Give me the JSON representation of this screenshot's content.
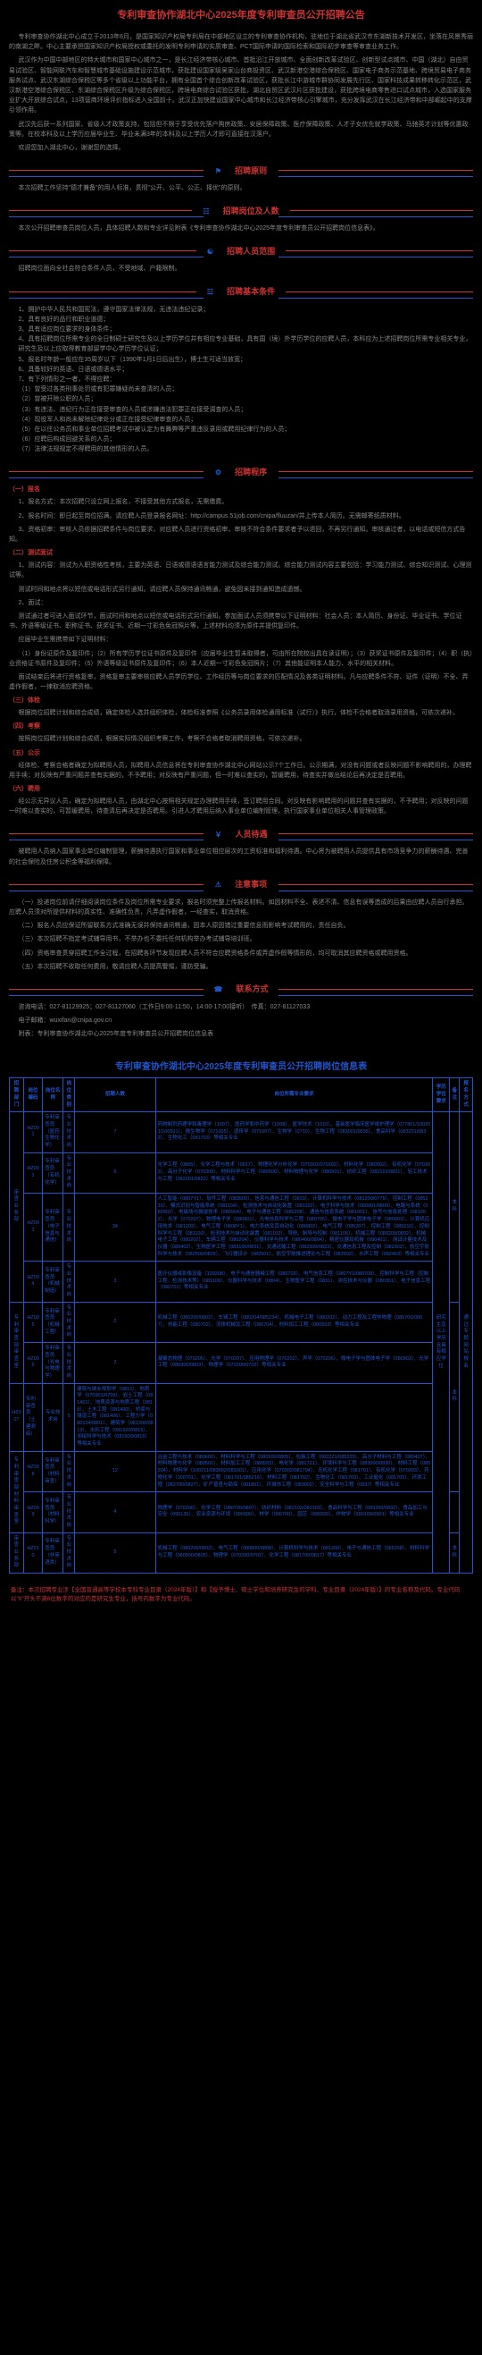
{
  "title": "专利审查协作湖北中心2025年度专利审查员公开招聘公告",
  "intro": [
    "专利审查协作湖北中心成立于2013年6月，是国家知识产权局专利局在中部地区设立的专利审查协作机构，驻地位于湖北省武汉市东湖新技术开发区，坐落在风景秀丽的南湖之畔。中心主要承担国家知识产权局授权或委托的发明专利申请的实质审查、PCT国际申请的国际检索和国际初步审查等审查业务工作。",
    "武汉作为中国中部地区的特大城市和国家中心城市之一，是长江经济带核心城市、首批沿江开放城市、全面创新改革试验区、创新型试点城市、中国（湖北）自由贸易试验区、智能网联汽车和智慧城市基础设施建设示范城市，获批建设国家级吴家山台商投资区、武汉新港空港综合保税区、国家电子商务示范基地、跨境贸易电子商务服务试点、武汉东湖综合保税区等多个省级以上功能平台，拥有全国首个综合创新改革试验区，获批长江中游城市群协同发展先行区、国家科技成果转移转化示范区，武汉新港空港综合保税区、东湖综合保税区升级为综合保税区，跨境电商综合试验区获批，湖北自贸区武汉片区获批建设，获批跨境电商零售进口试点城市，入选国家服务业扩大开放综合试点，13项营商环境评价指标进入全国前十。武汉正加快建设国家中心城市和长江经济带核心引擎城市，充分发挥武汉在长江经济带和中部崛起中的支撑引领作用。",
    "武汉先后获一系列国家、省级人才政策支持，包括但不限于享受优先落户购房政策、安居保障政策、医疗保障政策、人才子女优先就学政策、马驰英才计划等优惠政策等。在校本科及以上学历应届毕业生、毕业未满3年的本科及以上学历人才即可直接在汉落户。",
    "欢迎您加入湖北中心，谢谢您的选择。"
  ],
  "sections": {
    "s1": {
      "title": "招聘原则",
      "body": [
        "本次招聘工作坚持\"德才兼备\"的用人标准，贯彻\"公开、公平、公正、择优\"的原则。"
      ]
    },
    "s2": {
      "title": "招聘岗位及人数",
      "body": [
        "本次公开招聘审查员岗位人员，具体招聘人数和专业详见附表《专利审查协作湖北中心2025年度专利审查员公开招聘岗位信息表》。"
      ]
    },
    "s3": {
      "title": "招聘人员范围",
      "body": [
        "招聘岗位面向全社会符合条件人员，不受地域、户籍限制。"
      ]
    },
    "s4": {
      "title": "招聘基本条件",
      "items": [
        "1、拥护中华人民共和国宪法，遵守国家法律法规，无违法违纪记录；",
        "2、具有良好的品行和职业道德；",
        "3、具有适应岗位要求的身体条件；",
        "4、具有招聘岗位所需专业的全日制硕士研究生及以上学历学位并有相应专业基础，具有国（境）外学历学位的应聘人员，本科应为上述招聘岗位所需专业相关专业，研究生及以上应取得教育部留学中心学历学位认证；",
        "5、报名时年龄一般应在35周岁以下（1990年1月1日后出生），博士生可适当放宽；",
        "6、具备较好的英语、日语或德语水平；",
        "7、有下列情形之一者，不得应聘：",
        "（1）曾受过各类刑事处罚或有犯罪嫌疑尚未查清的人员；",
        "（2）曾被开除公职的人员；",
        "（3）有违法、违纪行为正在接受审查的人员或涉嫌违法犯罪正在接受调查的人员；",
        "（4）现役军人和尚未解除纪律处分或正在接受纪律审查的人员；",
        "（5）在以往公务员和事业单位招聘考试中被认定为有舞弊等严重违反录用或聘用纪律行为的人员；",
        "（6）应聘后构成回避关系的人员；",
        "（7）法律法规规定不得聘用的其他情形的人员。"
      ]
    },
    "s5": {
      "title": "招聘程序",
      "subs": [
        {
          "h": "（一）报名",
          "p": [
            "1、报名方式：本次招聘只设立网上报名，不接受其他方式报名，无需缴费。",
            "2、报名时间：即日起至岗位招满。请应聘人员登录报名网址：http://campus.51job.com/cnipa/fluuzan/并上传本人简历。无需邮寄纸质材料。",
            "3、资格初审：审核人员依据招聘条件与岗位要求，对应聘人员进行资格初审，审核不符合条件要求者予以退回，不再另行通知。审核通过者，以电话或短信方式告知。"
          ]
        },
        {
          "h": "（二）测试面试",
          "p": [
            "1、测试内容：测试为入职资格性考核，主要为英语、日语或德语语言能力测试及综合能力测试。综合能力测试内容主要包括：学习能力测试、综合知识测试、心理测试等。",
            "测试时间和地点将以短信或电话形式另行通知。请应聘人员保持通讯畅通，避免因未接到通知造成遗憾。",
            "2、面试：",
            "测试通过者可进入面试环节，面试时间和地点以短信或电话形式另行通知。参加面试人员须携带以下证明材料：社会人员：本人简历、身份证、毕业证书、学位证书、外语等级证书、职称证书、获奖证书、近期一寸彩色免冠照片等，上述材料均须为原件并提供复印件。",
            "应届毕业生需携带如下证明材料：",
            "（1）身份证原件及复印件；（2）所有学历学位证书原件及复印件（应届毕业生暂未取得者，可由所在院校出具在读证明）；（3）获奖证书原件及复印件；（4）职（执）业资格证书原件及复印件；（5）外语等级证书原件及复印件；（6）本人近期一寸彩色免冠照片；（7）其他能证明本人能力、水平的相关材料。",
            "面试结束后将进行资格复审，资格复审主要审核应聘人员学历学位、工作经历等与岗位要求的匹配情况及各类证明材料。凡与应聘条件不符、证件（证明）不全、弄虚作假者，一律取消应聘资格。"
          ]
        },
        {
          "h": "（三）体检",
          "p": [
            "根据岗位招聘计划和综合成绩，确定体检人选并组织体检，体检标准参照《公务员录用体检通用标准（试行）》执行，体检不合格者取消录用资格，可依次递补。"
          ]
        },
        {
          "h": "（四）考察",
          "p": [
            "按照岗位招聘计划和综合成绩，根据实际情况组织考察工作，考察不合格者取消聘用资格，可依次递补。"
          ]
        },
        {
          "h": "（五）公示",
          "p": [
            "经体检、考察合格者确定为拟聘用人员，拟聘用人员信息将在专利审查协作湖北中心网站公示7个工作日。公示期满，对没有问题或者反映问题不影响聘用的，办理聘用手续；对反映有严重问题并查有实据的，不予聘用；对反映有严重问题，但一时难以查实的，暂缓聘用，待查实并做出结论后再决定是否聘用。"
          ]
        },
        {
          "h": "（六）聘用",
          "p": [
            "经公示无异议人员，确定为拟聘用人员，由湖北中心按照相关规定办理聘用手续，签订聘用合同。对反映有影响聘用的问题并查有实据的，不予聘用；对反映的问题一时难以查实的，可暂缓聘用，待查清后再决定是否聘用。引进人才聘用后纳入事业单位编制管理，执行国家事业单位相关人事管理政策。"
          ]
        }
      ]
    },
    "s6": {
      "title": "人员待遇",
      "body": [
        "被聘用人员纳入国家事业单位编制管理，薪酬待遇执行国家和事业单位相应层次的工资标准和福利待遇。中心将为被聘用人员提供具有市场竞争力的薪酬待遇、完善的社会保险及住房公积金等福利保障。"
      ]
    },
    "s7": {
      "title": "注意事项",
      "items": [
        "（一）投递岗位前请仔细阅读岗位条件及岗位所需专业要求，报名时须完整上传报名材料。如因材料不全、表述不清、信息有误等造成的后果由应聘人员自行承担。应聘人员须对所提供材料的真实性、准确性负责，凡弄虚作假者，一经查实，取消资格。",
        "（二）报名人员应保证所留联系方式准确无误并保持通讯畅通，因本人原因错过重要信息而影响考试聘用的，责任自负。",
        "（三）本次招聘不指定考试辅导用书，不举办也不委托任何机构举办考试辅导培训班。",
        "（四）资格审查贯穿招聘工作全过程，在招聘各环节发现应聘人员不符合应聘资格条件或弄虚作假等情形的，均可取消其应聘资格或聘用资格。",
        "（五）本次招聘不收取任何费用，敬请应聘人员提高警惕，谨防受骗。"
      ]
    },
    "s8": {
      "title": "联系方式",
      "body": [
        "咨询电话：027-81129925；027-81127060（工作日9:00-11:50，14:00-17:00接听）　传真：027-81127033",
        "电子邮箱：wuxifan@cnipa.gov.cn",
        "附表：专利审查协作湖北中心2025年度专利审查员公开招聘岗位信息表"
      ]
    }
  },
  "tableTitle": "专利审查协作湖北中心2025年度专利审查员公开招聘岗位信息表",
  "headers": [
    "招聘部门",
    "岗位编码",
    "岗位名称",
    "岗位类别",
    "招聘人数",
    "岗位所需专业要求",
    "学历学位要求",
    "备注",
    "报名方式"
  ],
  "rows": [
    {
      "dept": "审查业务部",
      "rowspan": 4,
      "code": "HZ001",
      "name": "专利审查员（医药生物化学）",
      "cat": "专业技术岗",
      "num": "7",
      "req": "药物制剂药理学和毒理学（1007）、医药学和中药学（1008）、医学技术（1010）、基础医学临床医学或护理学（077801/100201/100501）、微生物学（071005）、遗传学（071007）、生物学（0710）、生物工程（083001/0836）、食品科学（083201/0832）、生物化工（081703）等相关专业",
      "edu": "研究生及以上学历且具有相应学位",
      "eduRowspan": 8,
      "note": "本科",
      "noteRowspan": 4,
      "apply": "通过专题网站报名",
      "applyRowspan": 8
    },
    {
      "code": "HZ002",
      "name": "专利审查员（有机化学）",
      "cat": "专业技术岗",
      "num": "6",
      "req": "化学工程（0805）、化学工程与技术（0817）、物理化学分析化学（070301/070302）、材料化学（080502）、有机化学（070303）、高分子化学（070305）、材料科学与工程（080500）、材料物理与化学（080501）、纺织工程（082101/0821）、轻工技术与工程（082201/0822）等相关专业"
    },
    {
      "code": "HZ003",
      "name": "专利审查员（电子信息与通信）",
      "cat": "专业技术岗",
      "num": "34",
      "req": "人工智能（0807Y1）、软件工程（083500）、信息与通信工程（0810）、计算机科学与技术（081200/0775）、控制工程（085210）、模式识别与智能系统（081104）、检测技术与自动化装置（081102）、电子科学与技术（080901/0809）、电路与系统（080902）、电磁场与微波技术（080904）、电子与通信工程（085208）、通信与信息系统（081001）、信号与信息处理（081002）、光学（070207）、物理电子学（080901）、光电信息科学与工程（080705）、微电子学与固体电子学（080903）、计算机应用技术（081203）、电气工程（0808Y1）、电力系统及其自动化（080802）、电气工程（085207）、控制工程（085210）、控制科学与工程（081100）、检测技术与自动化装置（081102）、导航、制导与控制（081105）、机械工程（080200/0802）、机械电子工程（080202）、车辆工程（080204）、仪器科学与技术（080400/0804）、精密仪器及机械（080401）、测试计量技术及仪器（080402）、生物医学工程（083100/0831）、交通运输工程（082300/0823）、交通信息工程及控制（082302）、航空宇航科学与技术（082500/0825）、飞行器设计（082501）、航空宇航推进理论与工程（082502）、水声工程（082403）等相关专业"
    },
    {
      "code": "HZ004",
      "name": "专利审查员（机械制造）",
      "cat": "专业技术岗",
      "num": "3",
      "req": "医疗仪器或影像设备（100208）、电子与通信器械工程（080703）、电气信息工程（0807Y1/080708）、控制科学与工程（控制工程、检测技术等）（081100）、仪器科学与技术（0804）、生物医学工程（0831）、测控技术与仪器（080301）、电子信息工程（080701）等相关专业"
    },
    {
      "dept": "专利审查部审查室",
      "rowspan": 2,
      "code": "HZ005",
      "name": "专利审查员（机械工程）",
      "cat": "专业技术岗",
      "num": "2",
      "req": "机械工程（080200/0802）、车辆工程（080204/085234）、机械电子工程（080202）、动力工程及工程热物理（080700/0807）、热能工程（080702）、流体机械及工程（080704）、材料加工工程（080503）等相关专业",
      "note": "本科",
      "noteRowspan": 4
    },
    {
      "code": "HZ006",
      "name": "专利审查员（光电与物理学）",
      "cat": "专业技术岗",
      "num": "2",
      "req": "凝聚态物理（070205）、光学（070207）、应用物理学（070202）、声学（070206）、微电子学与固体电子学（080903）、光学工程（080300/0803）、物理学（070200/0702）等相关专业"
    },
    {
      "code": "HZ007",
      "name": "专利审查员（土建测绘）",
      "cat": "专业技术岗",
      "num": "5",
      "req": "建筑与城乡规划学（0813）、地质学（070901/0709）、岩土工程（081401）、地质资源与地质工程（0818）、土木工程（081400）、桥梁与隧道工程（081406）、工程力学（080104/0801）、建筑学（081300/0813）、水利工程（081500/0815）、测绘科学与技术（081600/0816）等相关专业"
    },
    {
      "dept": "专利审查部材料审查室",
      "rowspan": 2,
      "code": "HZ008",
      "name": "专利审查员（材料审查）",
      "cat": "专业技术岗",
      "num": "12",
      "req": "冶金工程与技术（080600）、材料科学与工程（080500/0805）、包装工程（0822Z1/085229）、高分子材料与工程（080407）、材料物理与化学（080501）、材料加工工程（080503）、电化学（0817Z1）、环境科学与工程（083000/0830）、材料工程（085204）、材料学（100211/083002/083001）、应用化学（070302/081704）、无机化学工程（081701）、有机化学（070303）、药物化学（100701）、化学工程（081701/085216）、材料工程（081702）、生物化工（081703）、工业催化（081705）、环境工程（082700/0827）、矿产普查与勘探（081801）、环城市工程（083002）、安全科学与工程（0837）等相关专业"
    },
    {
      "code": "HZ009",
      "name": "专利审查员（材料科学）",
      "cat": "专业技术岗",
      "num": "4",
      "req": "物理学（070200）、化学工程（080700/0807）、纺织材料（082102/082103）、食品科学与工程（083200/0832）、食品加工与安全（095135）、农业资源与环境（090300）、林学（090700）、园艺（090200）、作物学（090100/0901）等相关专业"
    },
    {
      "dept": "审查业务部",
      "code": "HZ010",
      "name": "专利审查员（非英语类）",
      "cat": "专业技术岗",
      "num": "5",
      "req": "机械工程（080200/0802）、电气工程（080800/0808）、计算机科学与技术（081200）、电子与通信工程（085208）、材料科学与工程（080500/0805）、物理学（070200/0702）、化学工程（081700/0817）等相关专业",
      "note": "本科"
    }
  ],
  "footer": "备注：本次招聘专业涉【全国普通高等学校本专科专业目录（2024年版）】和【授予博士、硕士学位和培养研究生的学科、专业目录（2024年版）】的专业名称及代码。专业代码以\"0\"开头不满6位数字的对应的是研究生专业，括号内数字为专业代码。"
}
